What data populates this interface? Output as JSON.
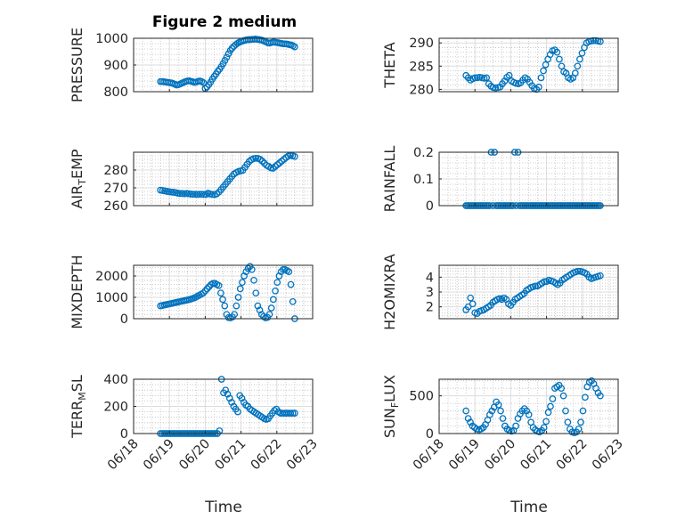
{
  "chart_data": {
    "title": "Figure 2 medium",
    "marker_color": "#0072bd",
    "marker": "circle",
    "x_type": "date",
    "x_ticks": [
      "06/18",
      "06/19",
      "06/20",
      "06/21",
      "06/22",
      "06/23"
    ],
    "xlim": [
      "06/18",
      "06/23"
    ],
    "xlabel": "Time",
    "grid": "on",
    "minor_grid": "on",
    "subplots": [
      {
        "type": "scatter",
        "ylabel": "PRESSURE",
        "ylabel_sub": "",
        "ylim": [
          800,
          1000
        ],
        "y_ticks": [
          "800",
          "900",
          "1000"
        ],
        "y_tick_values": [
          800,
          900,
          1000
        ],
        "x_data_start": "06/18 18:00",
        "x_data_end": "06/22 12:00",
        "values": [
          838,
          838,
          837,
          836,
          835,
          834,
          833,
          831,
          828,
          825,
          826,
          829,
          832,
          835,
          838,
          840,
          841,
          839,
          837,
          835,
          836,
          839,
          840,
          838,
          834,
          812,
          818,
          826,
          836,
          847,
          857,
          866,
          876,
          884,
          894,
          905,
          917,
          929,
          942,
          954,
          963,
          970,
          976,
          981,
          985,
          988,
          990,
          992,
          994,
          995,
          995,
          996,
          996,
          997,
          996,
          995,
          994,
          992,
          989,
          986,
          983,
          982,
          984,
          986,
          985,
          984,
          983,
          981,
          980,
          979,
          979,
          978,
          976,
          975,
          972,
          968
        ]
      },
      {
        "type": "scatter",
        "ylabel": "THETA",
        "ylabel_sub": "",
        "ylim": [
          279.5,
          291
        ],
        "y_ticks": [
          "280",
          "285",
          "290"
        ],
        "y_tick_values": [
          280,
          285,
          290
        ],
        "x_data_start": "06/18 18:00",
        "x_data_end": "06/22 12:00",
        "values": [
          283,
          282.5,
          282,
          282.3,
          282.5,
          282.5,
          282.6,
          282.5,
          282.4,
          282.5,
          281.2,
          280.7,
          280.4,
          280.3,
          280.4,
          280.5,
          281.2,
          281.8,
          282.6,
          283.0,
          281.8,
          281.5,
          281.3,
          281.2,
          281.4,
          282.0,
          282.5,
          282.2,
          281.5,
          280.8,
          280.2,
          280.0,
          280.5,
          282.5,
          284.0,
          285.3,
          286.5,
          287.5,
          288.3,
          288.5,
          288.0,
          286.5,
          285.0,
          283.8,
          283.5,
          282.5,
          282.2,
          282.5,
          283.5,
          285.0,
          286.5,
          287.8,
          289.0,
          290.0,
          290.3,
          290.4,
          290.5,
          290.5,
          290.4,
          290.3
        ]
      },
      {
        "type": "scatter",
        "ylabel": "AIR",
        "ylabel_sub": "T",
        "ylabel_rest": "EMP",
        "ylim": [
          260,
          290
        ],
        "y_ticks": [
          "260",
          "270",
          "280"
        ],
        "y_tick_values": [
          260,
          270,
          280
        ],
        "x_data_start": "06/18 18:00",
        "x_data_end": "06/22 12:00",
        "values": [
          268.7,
          268.5,
          268.3,
          268.0,
          267.8,
          267.6,
          267.5,
          267.3,
          267.0,
          266.8,
          266.8,
          266.7,
          266.8,
          266.7,
          266.5,
          266.4,
          266.4,
          266.3,
          266.4,
          266.4,
          266.3,
          266.3,
          267.0,
          266.5,
          266.3,
          266.2,
          266.6,
          267.6,
          269.0,
          270.5,
          272.0,
          273.5,
          275.0,
          276.4,
          277.8,
          278.6,
          279.2,
          279.5,
          279.8,
          281.5,
          283.2,
          284.8,
          285.8,
          286.4,
          286.6,
          286.5,
          286.0,
          285.0,
          283.8,
          282.6,
          282.0,
          281.2,
          281.0,
          282.0,
          283.0,
          284.0,
          285.0,
          286.0,
          287.0,
          287.8,
          288.2,
          288.0,
          287.6
        ]
      },
      {
        "type": "scatter",
        "ylabel": "RAINFALL",
        "ylabel_sub": "",
        "ylim": [
          0,
          0.2
        ],
        "y_ticks": [
          "0",
          "0.1",
          "0.2"
        ],
        "y_tick_values": [
          0,
          0.1,
          0.2
        ],
        "x_data_start": "06/18 18:00",
        "x_data_end": "06/22 12:00",
        "values": [
          0,
          0,
          0,
          0,
          0,
          0,
          0,
          0,
          0,
          0,
          0,
          0,
          0,
          0,
          0,
          0.2,
          0,
          0.2,
          0,
          0,
          0,
          0,
          0,
          0,
          0,
          0,
          0,
          0,
          0,
          0.2,
          0,
          0.2,
          0,
          0,
          0,
          0,
          0,
          0,
          0,
          0,
          0,
          0,
          0,
          0,
          0,
          0,
          0,
          0,
          0,
          0,
          0,
          0,
          0,
          0,
          0,
          0,
          0,
          0,
          0,
          0,
          0,
          0,
          0,
          0,
          0,
          0,
          0,
          0,
          0,
          0,
          0,
          0,
          0,
          0,
          0,
          0,
          0,
          0,
          0,
          0,
          0
        ]
      },
      {
        "type": "scatter",
        "ylabel": "MIXDEPTH",
        "ylabel_sub": "",
        "ylim": [
          0,
          2500
        ],
        "y_ticks": [
          "0",
          "1000",
          "2000"
        ],
        "y_tick_values": [
          0,
          1000,
          2000
        ],
        "x_data_start": "06/18 18:00",
        "x_data_end": "06/22 12:00",
        "values": [
          600,
          620,
          640,
          660,
          680,
          700,
          720,
          740,
          760,
          780,
          800,
          820,
          840,
          860,
          880,
          900,
          930,
          960,
          1000,
          1050,
          1100,
          1150,
          1200,
          1300,
          1400,
          1500,
          1600,
          1650,
          1650,
          1600,
          1550,
          1200,
          900,
          600,
          200,
          50,
          40,
          80,
          200,
          600,
          1000,
          1400,
          1700,
          2000,
          2200,
          2350,
          2450,
          2300,
          1800,
          1200,
          600,
          400,
          200,
          100,
          40,
          60,
          200,
          500,
          900,
          1300,
          1700,
          2000,
          2200,
          2300,
          2300,
          2250,
          2200,
          1600,
          800,
          0
        ]
      },
      {
        "type": "scatter",
        "ylabel": "H2OMIXRA",
        "ylabel_sub": "",
        "ylim": [
          1.2,
          4.8
        ],
        "y_ticks": [
          "2",
          "3",
          "4"
        ],
        "y_tick_values": [
          2,
          3,
          4
        ],
        "x_data_start": "06/18 18:00",
        "x_data_end": "06/22 12:00",
        "values": [
          1.8,
          2.0,
          2.6,
          2.2,
          1.6,
          1.55,
          1.7,
          1.75,
          1.8,
          1.9,
          2.0,
          2.1,
          2.3,
          2.4,
          2.5,
          2.55,
          2.5,
          2.6,
          2.5,
          2.2,
          2.1,
          2.3,
          2.5,
          2.6,
          2.7,
          2.8,
          2.9,
          3.1,
          3.2,
          3.3,
          3.35,
          3.4,
          3.4,
          3.5,
          3.6,
          3.7,
          3.7,
          3.8,
          3.75,
          3.7,
          3.6,
          3.5,
          3.6,
          3.8,
          3.9,
          4.0,
          4.1,
          4.2,
          4.3,
          4.35,
          4.4,
          4.4,
          4.35,
          4.3,
          4.2,
          4.0,
          3.9,
          3.95,
          4.0,
          4.05,
          4.1
        ]
      },
      {
        "type": "scatter",
        "ylabel": "TERR",
        "ylabel_sub": "M",
        "ylabel_rest": "SL",
        "ylim": [
          0,
          400
        ],
        "y_ticks": [
          "0",
          "200",
          "400"
        ],
        "y_tick_values": [
          0,
          200,
          400
        ],
        "x_data_start": "06/18 18:00",
        "x_data_end": "06/22 12:00",
        "values": [
          0,
          0,
          0,
          0,
          0,
          0,
          0,
          0,
          0,
          0,
          0,
          0,
          0,
          0,
          0,
          0,
          0,
          0,
          0,
          0,
          0,
          0,
          0,
          0,
          0,
          0,
          0,
          0,
          0,
          20,
          400,
          300,
          320,
          290,
          260,
          230,
          200,
          180,
          160,
          280,
          260,
          230,
          210,
          200,
          180,
          170,
          160,
          150,
          140,
          130,
          120,
          110,
          105,
          110,
          130,
          150,
          170,
          180,
          160,
          150,
          150,
          150,
          150,
          150,
          150,
          150,
          150
        ]
      },
      {
        "type": "scatter",
        "ylabel": "SUN",
        "ylabel_sub": "F",
        "ylabel_rest": "LUX",
        "ylim": [
          0,
          720
        ],
        "y_ticks": [
          "0",
          "500"
        ],
        "y_tick_values": [
          0,
          500
        ],
        "x_data_start": "06/18 18:00",
        "x_data_end": "06/22 12:00",
        "values": [
          300,
          200,
          150,
          100,
          80,
          60,
          50,
          60,
          80,
          120,
          180,
          250,
          300,
          350,
          420,
          380,
          300,
          200,
          100,
          60,
          40,
          30,
          40,
          100,
          200,
          260,
          300,
          330,
          300,
          250,
          150,
          80,
          50,
          30,
          20,
          40,
          80,
          160,
          280,
          360,
          460,
          600,
          620,
          640,
          600,
          500,
          300,
          150,
          60,
          20,
          10,
          20,
          60,
          150,
          300,
          480,
          620,
          680,
          700,
          660,
          600,
          540,
          500
        ]
      }
    ]
  }
}
